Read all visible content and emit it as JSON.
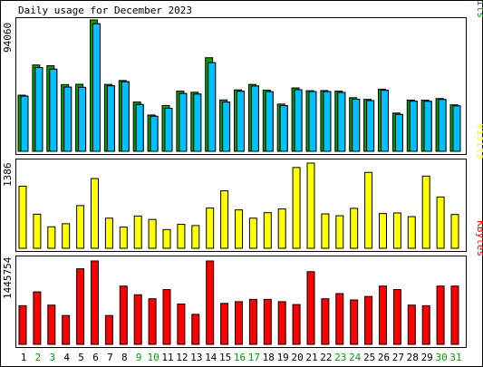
{
  "title": "Daily usage for December 2023",
  "colors": {
    "background": "#FFFFFF",
    "panel_border": "#000000",
    "hits": "#00A000",
    "files": "#0080C0",
    "pages": "#00C0FF",
    "visits": "#FFFF00",
    "kbytes": "#FF0000",
    "day_black": "#000000",
    "day_weekend": "#00A000"
  },
  "chart_data": [
    {
      "type": "bar",
      "panel": "hits-files-pages",
      "categories": [
        "1",
        "2",
        "3",
        "4",
        "5",
        "6",
        "7",
        "8",
        "9",
        "10",
        "11",
        "12",
        "13",
        "14",
        "15",
        "16",
        "17",
        "18",
        "19",
        "20",
        "21",
        "22",
        "23",
        "24",
        "25",
        "26",
        "27",
        "28",
        "29",
        "30",
        "31"
      ],
      "max_label": "94060",
      "ylim": [
        0,
        94060
      ],
      "series_label_parts": [
        {
          "text": "Pages",
          "color": "#00C0FF"
        },
        {
          "text": "/",
          "color": "#000000"
        },
        {
          "text": "Files",
          "color": "#0080C0"
        },
        {
          "text": "/",
          "color": "#000000"
        },
        {
          "text": "Hits",
          "color": "#00A000"
        }
      ],
      "series": [
        {
          "name": "Hits",
          "color": "#00A000",
          "values": [
            40200,
            61800,
            61300,
            47800,
            48000,
            94060,
            47900,
            50700,
            35300,
            26000,
            32800,
            43100,
            42300,
            67000,
            36800,
            44000,
            47900,
            43800,
            33800,
            45400,
            43400,
            43500,
            43100,
            38400,
            37200,
            44500,
            27400,
            36700,
            36600,
            37800,
            33300
          ]
        },
        {
          "name": "Files",
          "color": "#0080C0",
          "values": [
            39500,
            60000,
            58800,
            46000,
            45800,
            91300,
            46900,
            49800,
            33500,
            25100,
            30800,
            41400,
            41000,
            63400,
            35300,
            43000,
            46800,
            42700,
            32700,
            44100,
            42800,
            42800,
            42100,
            37300,
            36300,
            43700,
            26400,
            35900,
            35800,
            37100,
            32500
          ]
        },
        {
          "name": "Pages",
          "color": "#00C0FF",
          "values": [
            39500,
            60000,
            58800,
            46000,
            45800,
            91300,
            46900,
            49800,
            33500,
            25100,
            30800,
            41400,
            41000,
            63400,
            35300,
            43000,
            46800,
            42700,
            32700,
            44100,
            42800,
            42800,
            42100,
            37300,
            36300,
            43700,
            26400,
            35900,
            35800,
            37100,
            32500
          ]
        }
      ]
    },
    {
      "type": "bar",
      "panel": "visits",
      "categories": [
        "1",
        "2",
        "3",
        "4",
        "5",
        "6",
        "7",
        "8",
        "9",
        "10",
        "11",
        "12",
        "13",
        "14",
        "15",
        "16",
        "17",
        "18",
        "19",
        "20",
        "21",
        "22",
        "23",
        "24",
        "25",
        "26",
        "27",
        "28",
        "29",
        "30",
        "31"
      ],
      "max_label": "1386",
      "ylim": [
        0,
        1386
      ],
      "series_label_parts": [
        {
          "text": "Visits",
          "color": "#FFFF00"
        }
      ],
      "series": [
        {
          "name": "Visits",
          "color": "#FFFF00",
          "values": [
            1010,
            555,
            350,
            400,
            695,
            1135,
            490,
            345,
            525,
            470,
            305,
            390,
            370,
            655,
            935,
            625,
            490,
            580,
            640,
            1315,
            1386,
            560,
            530,
            650,
            1235,
            565,
            575,
            515,
            1175,
            835,
            550
          ]
        }
      ]
    },
    {
      "type": "bar",
      "panel": "kbytes",
      "categories": [
        "1",
        "2",
        "3",
        "4",
        "5",
        "6",
        "7",
        "8",
        "9",
        "10",
        "11",
        "12",
        "13",
        "14",
        "15",
        "16",
        "17",
        "18",
        "19",
        "20",
        "21",
        "22",
        "23",
        "24",
        "25",
        "26",
        "27",
        "28",
        "29",
        "30",
        "31"
      ],
      "max_label": "1445754",
      "ylim": [
        0,
        1445754
      ],
      "series_label_parts": [
        {
          "text": "KBytes",
          "color": "#FF0000"
        }
      ],
      "series": [
        {
          "name": "KBytes",
          "color": "#FF0000",
          "values": [
            670000,
            910000,
            680000,
            500000,
            1310000,
            1445754,
            500000,
            1010000,
            860000,
            790000,
            950000,
            700000,
            520000,
            1445754,
            710000,
            740000,
            780000,
            780000,
            740000,
            690000,
            1260000,
            790000,
            880000,
            770000,
            830000,
            1010000,
            950000,
            680000,
            670000,
            1010000,
            1010000
          ]
        }
      ]
    }
  ],
  "day_labels": [
    {
      "text": "1",
      "weekend": false
    },
    {
      "text": "2",
      "weekend": true
    },
    {
      "text": "3",
      "weekend": true
    },
    {
      "text": "4",
      "weekend": false
    },
    {
      "text": "5",
      "weekend": false
    },
    {
      "text": "6",
      "weekend": false
    },
    {
      "text": "7",
      "weekend": false
    },
    {
      "text": "8",
      "weekend": false
    },
    {
      "text": "9",
      "weekend": true
    },
    {
      "text": "10",
      "weekend": true
    },
    {
      "text": "11",
      "weekend": false
    },
    {
      "text": "12",
      "weekend": false
    },
    {
      "text": "13",
      "weekend": false
    },
    {
      "text": "14",
      "weekend": false
    },
    {
      "text": "15",
      "weekend": false
    },
    {
      "text": "16",
      "weekend": true
    },
    {
      "text": "17",
      "weekend": true
    },
    {
      "text": "18",
      "weekend": false
    },
    {
      "text": "19",
      "weekend": false
    },
    {
      "text": "20",
      "weekend": false
    },
    {
      "text": "21",
      "weekend": false
    },
    {
      "text": "22",
      "weekend": false
    },
    {
      "text": "23",
      "weekend": true
    },
    {
      "text": "24",
      "weekend": true
    },
    {
      "text": "25",
      "weekend": false
    },
    {
      "text": "26",
      "weekend": false
    },
    {
      "text": "27",
      "weekend": false
    },
    {
      "text": "28",
      "weekend": false
    },
    {
      "text": "29",
      "weekend": false
    },
    {
      "text": "30",
      "weekend": true
    },
    {
      "text": "31",
      "weekend": true
    }
  ]
}
